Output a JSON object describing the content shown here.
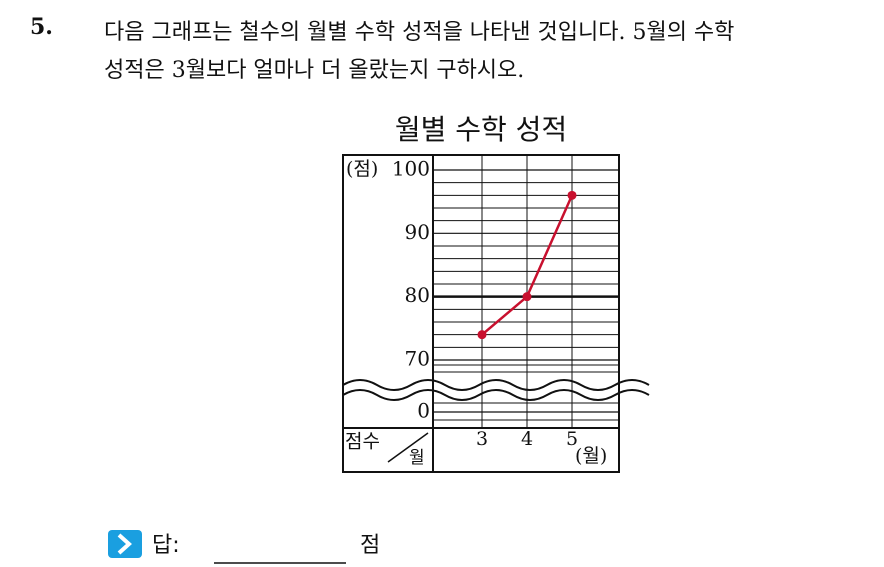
{
  "problem": {
    "number": "5.",
    "lines": [
      "다음 그래프는 철수의 월별 수학 성적을 나타낸 것입니다. 5월의 수학",
      "성적은 3월보다 얼마나 더 올랐는지 구하시오."
    ]
  },
  "chart_data": {
    "type": "line",
    "title": "월별 수학 성적",
    "y_label": "(점)",
    "x_label": "(월)",
    "corner_labels": [
      "점수",
      "월"
    ],
    "categories": [
      "3",
      "4",
      "5"
    ],
    "series": [
      {
        "name": "수학 성적",
        "color": "#c8102e",
        "values": [
          74,
          80,
          96
        ]
      }
    ],
    "ylim": [
      0,
      100
    ],
    "y_break": [
      0,
      70
    ],
    "yticks": [
      0,
      70,
      80,
      90,
      100
    ],
    "major_line": 80,
    "grid": true
  },
  "answer": {
    "label": "답:",
    "unit": "점"
  }
}
